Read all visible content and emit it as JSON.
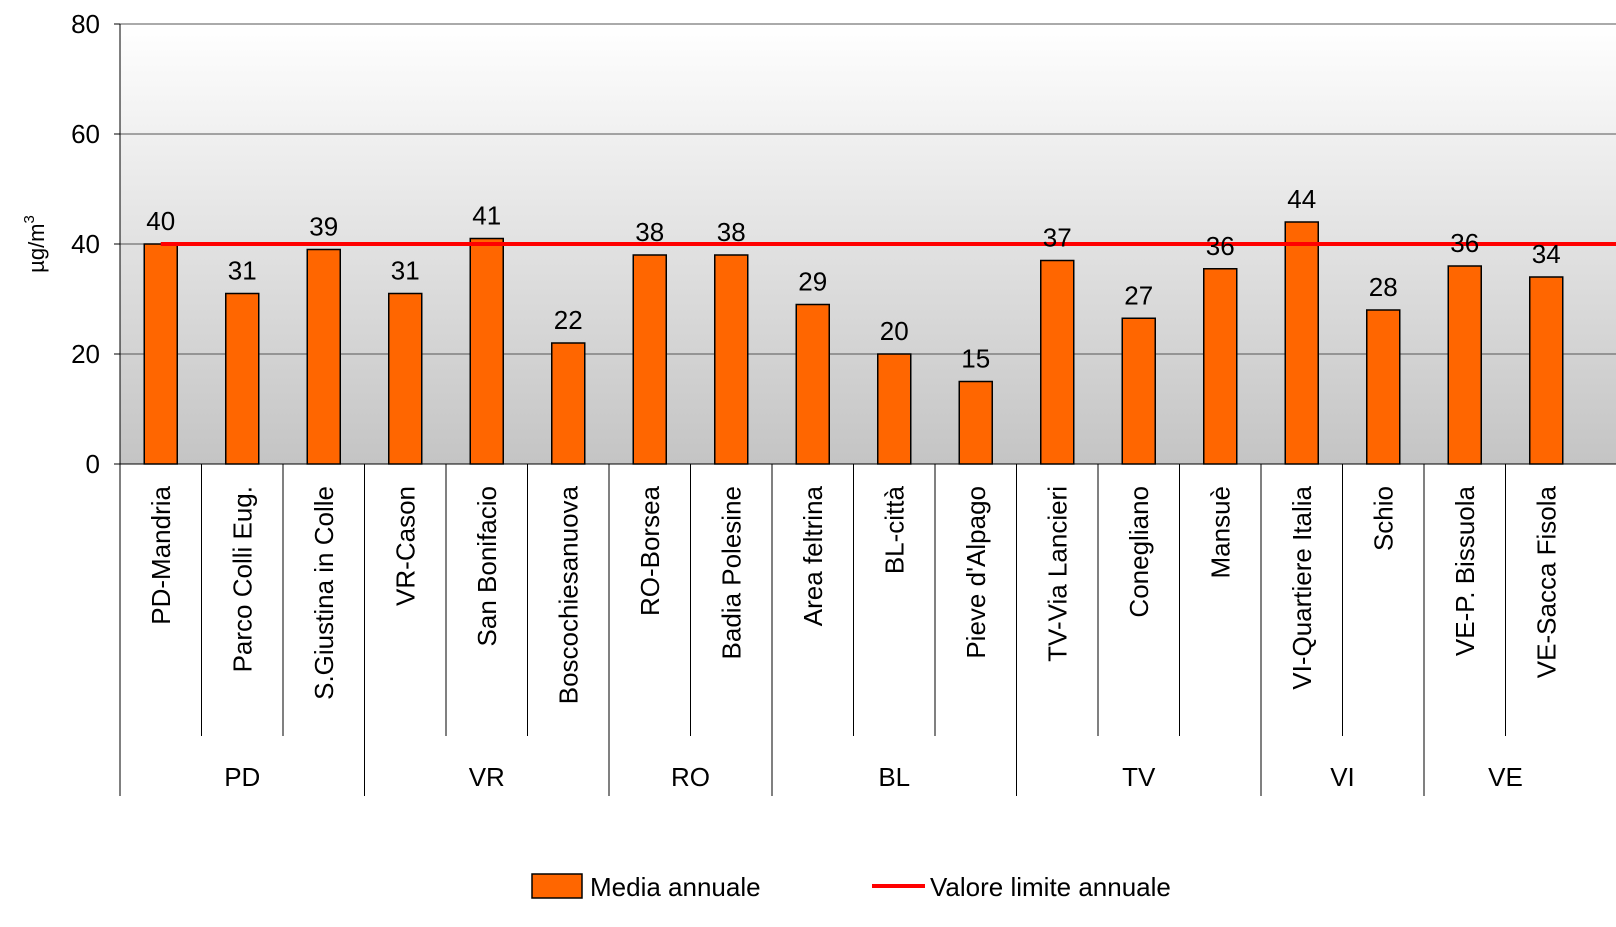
{
  "chart_data": {
    "type": "bar",
    "ylabel": "µg/m",
    "ylabel_sup": "3",
    "ylim": [
      0,
      80
    ],
    "yticks": [
      0,
      20,
      40,
      60,
      80
    ],
    "grid": true,
    "categories": [
      "PD-Mandria",
      "Parco Colli Eug.",
      "S.Giustina in Colle",
      "VR-Cason",
      "San Bonifacio",
      "Boscochiesanuova",
      "RO-Borsea",
      "Badia Polesine",
      "Area feltrina",
      "BL-città",
      "Pieve d'Alpago",
      "TV-Via Lancieri",
      "Conegliano",
      "Mansuè",
      "VI-Quartiere Italia",
      "Schio",
      "VE-P. Bissuola",
      "VE-Sacca Fisola"
    ],
    "groups": [
      {
        "label": "PD",
        "count": 3
      },
      {
        "label": "VR",
        "count": 3
      },
      {
        "label": "RO",
        "count": 2
      },
      {
        "label": "BL",
        "count": 3
      },
      {
        "label": "TV",
        "count": 3
      },
      {
        "label": "VI",
        "count": 2
      },
      {
        "label": "VE",
        "count": 2
      }
    ],
    "series": [
      {
        "name": "Media annuale",
        "type": "bar",
        "color": "#ff6600",
        "values": [
          40,
          31,
          39,
          31,
          41,
          22,
          38,
          38,
          29,
          20,
          15,
          37,
          26.5,
          35.5,
          44,
          28,
          36,
          34
        ],
        "data_labels": [
          "40",
          "31",
          "39",
          "31",
          "41",
          "22",
          "38",
          "38",
          "29",
          "20",
          "15",
          "37",
          "27",
          "36",
          "44",
          "28",
          "36",
          "34"
        ]
      },
      {
        "name": "Valore limite annuale",
        "type": "line",
        "color": "#ff0000",
        "value": 40
      }
    ],
    "legend_position": "bottom"
  }
}
